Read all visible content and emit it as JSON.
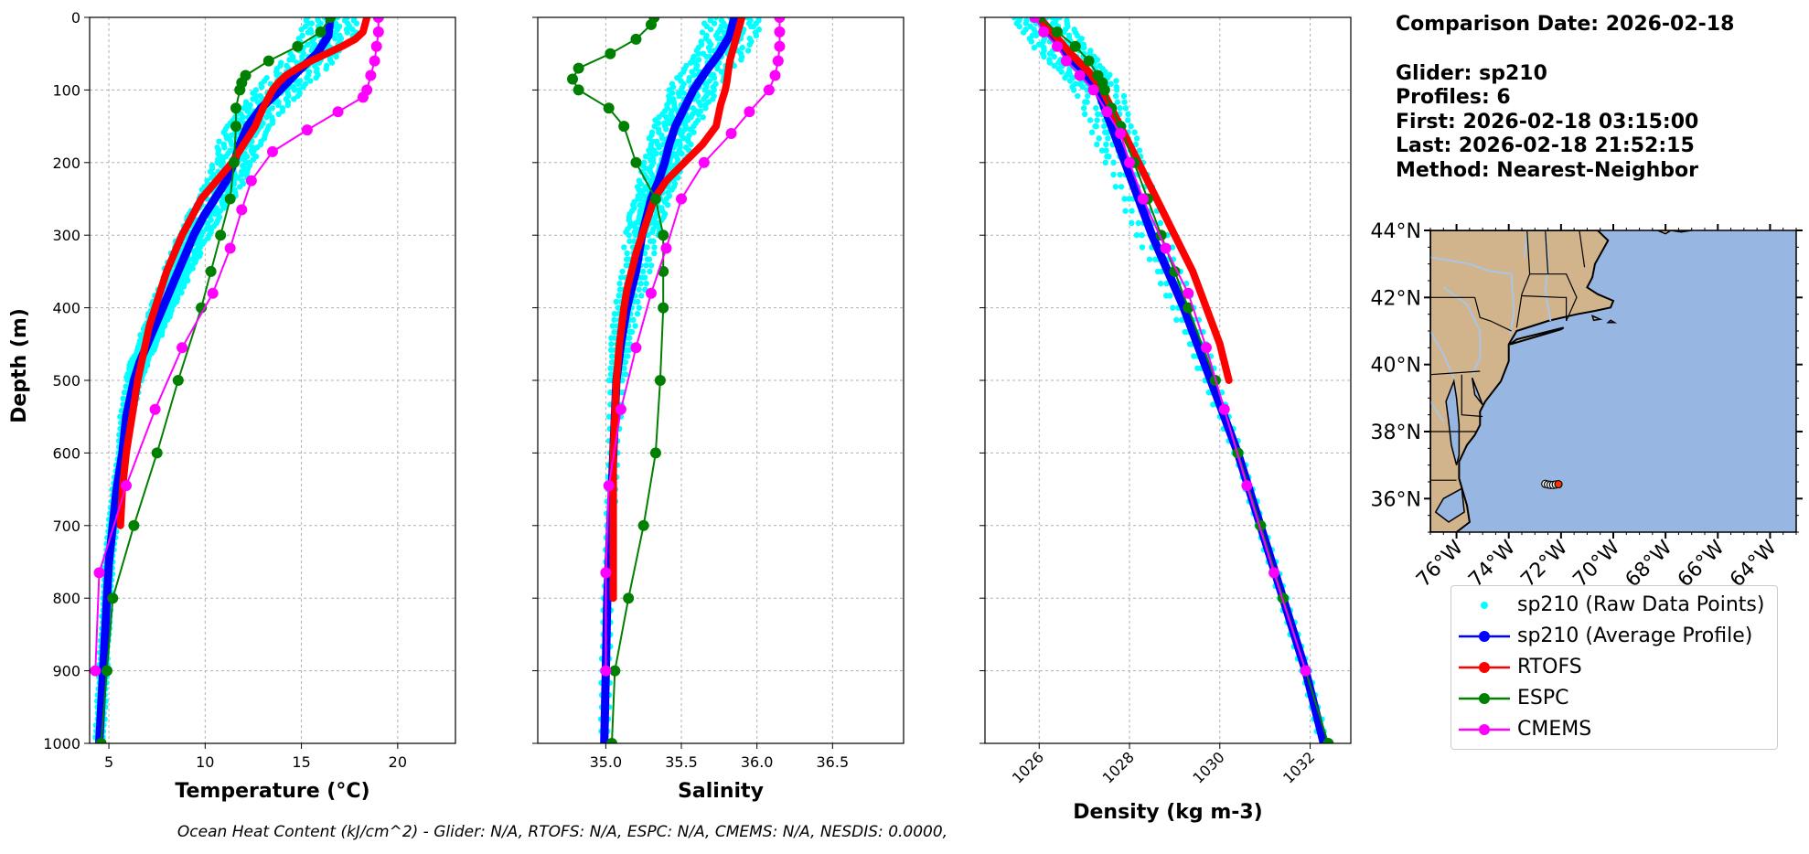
{
  "info": {
    "comparison": "Comparison Date: 2026-02-18",
    "glider": "Glider: sp210",
    "profiles": "Profiles: 6",
    "first": "First: 2026-02-18 03:15:00",
    "last": "Last: 2026-02-18 21:52:15",
    "method": "Method: Nearest-Neighbor"
  },
  "footer": "Ocean Heat Content (kJ/cm^2) - Glider: N/A,  RTOFS: N/A,  ESPC: N/A,  CMEMS: N/A,  NESDIS: 0.0000,",
  "colors": {
    "raw": "#00ffff",
    "glider": "#0000ff",
    "rtofs": "#ff0000",
    "espc": "#008000",
    "cmems": "#ff00ff",
    "land": "#d2b48c",
    "ocean": "#97b6e1",
    "river": "#a9c5e6"
  },
  "legend": [
    {
      "key": "raw",
      "label": "sp210 (Raw Data Points)",
      "style": "dot"
    },
    {
      "key": "glider",
      "label": "sp210 (Average Profile)",
      "style": "line"
    },
    {
      "key": "rtofs",
      "label": "RTOFS",
      "style": "line"
    },
    {
      "key": "espc",
      "label": "ESPC",
      "style": "line"
    },
    {
      "key": "cmems",
      "label": "CMEMS",
      "style": "line"
    }
  ],
  "chart_data": [
    {
      "type": "line",
      "id": "temperature",
      "xlabel": "Temperature (°C)",
      "ylabel": "Depth (m)",
      "xlim": [
        4,
        23
      ],
      "ylim": [
        1000,
        0
      ],
      "xticks": [
        5,
        10,
        15,
        20
      ],
      "yticks": [
        0,
        100,
        200,
        300,
        400,
        500,
        600,
        700,
        800,
        900,
        1000
      ],
      "grid": true,
      "series": [
        {
          "name": "sp210 (Average Profile)",
          "key": "glider",
          "depth": [
            0,
            25,
            50,
            75,
            100,
            125,
            150,
            175,
            200,
            225,
            250,
            275,
            300,
            325,
            350,
            375,
            400,
            425,
            450,
            475,
            500,
            550,
            600,
            650,
            700,
            750,
            800,
            850,
            900,
            950,
            1000
          ],
          "values": [
            16.5,
            16.4,
            15.8,
            14.8,
            13.9,
            12.9,
            12.2,
            11.8,
            11.5,
            11.1,
            10.5,
            9.9,
            9.4,
            9.0,
            8.6,
            8.2,
            7.8,
            7.4,
            7.0,
            6.6,
            6.3,
            5.9,
            5.7,
            5.4,
            5.2,
            5.0,
            4.9,
            4.8,
            4.7,
            4.6,
            4.5
          ]
        },
        {
          "name": "RTOFS",
          "key": "rtofs",
          "depth": [
            0,
            10,
            20,
            30,
            40,
            50,
            60,
            70,
            80,
            90,
            100,
            125,
            150,
            175,
            200,
            225,
            250,
            275,
            300,
            325,
            350,
            375,
            400,
            425,
            450,
            475,
            500,
            550,
            600,
            650,
            700
          ],
          "values": [
            18.4,
            18.3,
            18.2,
            17.8,
            17.1,
            16.3,
            15.5,
            14.8,
            14.2,
            13.8,
            13.5,
            13.0,
            12.6,
            12.0,
            11.4,
            10.6,
            9.8,
            9.3,
            8.8,
            8.4,
            8.0,
            7.7,
            7.4,
            7.1,
            6.9,
            6.7,
            6.5,
            6.2,
            5.9,
            5.7,
            5.6
          ]
        },
        {
          "name": "ESPC",
          "key": "espc",
          "markers": true,
          "depth": [
            0,
            20,
            40,
            60,
            80,
            90,
            100,
            125,
            150,
            200,
            250,
            300,
            350,
            400,
            500,
            600,
            700,
            800,
            900,
            1000
          ],
          "values": [
            16.5,
            16.0,
            14.8,
            13.3,
            12.1,
            11.9,
            11.8,
            11.6,
            11.6,
            11.5,
            11.3,
            10.8,
            10.3,
            9.8,
            8.6,
            7.5,
            6.3,
            5.2,
            4.9,
            4.6
          ]
        },
        {
          "name": "CMEMS",
          "key": "cmems",
          "markers": true,
          "depth": [
            0,
            20,
            40,
            60,
            80,
            100,
            110,
            130,
            155,
            185,
            225,
            265,
            318,
            380,
            455,
            540,
            645,
            765,
            900
          ],
          "values": [
            19.0,
            19.0,
            18.9,
            18.8,
            18.6,
            18.4,
            18.2,
            16.9,
            15.3,
            13.5,
            12.4,
            11.9,
            11.3,
            10.4,
            8.8,
            7.4,
            5.9,
            4.5,
            4.3
          ]
        }
      ]
    },
    {
      "type": "line",
      "id": "salinity",
      "xlabel": "Salinity",
      "xlim": [
        34.55,
        36.97
      ],
      "ylim": [
        1000,
        0
      ],
      "xticks": [
        35.0,
        35.5,
        36.0,
        36.5
      ],
      "yticks": [
        0,
        100,
        200,
        300,
        400,
        500,
        600,
        700,
        800,
        900,
        1000
      ],
      "grid": true,
      "series": [
        {
          "name": "sp210 (Average Profile)",
          "key": "glider",
          "depth": [
            0,
            25,
            50,
            75,
            100,
            125,
            150,
            175,
            200,
            225,
            250,
            275,
            300,
            350,
            400,
            450,
            500,
            600,
            700,
            800,
            900,
            1000
          ],
          "values": [
            35.85,
            35.82,
            35.75,
            35.66,
            35.58,
            35.52,
            35.46,
            35.42,
            35.39,
            35.35,
            35.3,
            35.27,
            35.24,
            35.2,
            35.14,
            35.1,
            35.07,
            35.05,
            35.03,
            35.01,
            35.0,
            34.99
          ]
        },
        {
          "name": "RTOFS",
          "key": "rtofs",
          "depth": [
            0,
            30,
            60,
            90,
            100,
            120,
            150,
            175,
            200,
            225,
            250,
            275,
            300,
            325,
            350,
            375,
            400,
            450,
            500,
            550,
            600,
            700,
            800
          ],
          "values": [
            35.9,
            35.86,
            35.82,
            35.8,
            35.79,
            35.76,
            35.73,
            35.64,
            35.52,
            35.4,
            35.32,
            35.28,
            35.24,
            35.2,
            35.17,
            35.14,
            35.12,
            35.09,
            35.07,
            35.06,
            35.05,
            35.05,
            35.05
          ]
        },
        {
          "name": "ESPC",
          "key": "espc",
          "markers": true,
          "depth": [
            0,
            10,
            30,
            50,
            70,
            85,
            100,
            125,
            150,
            200,
            250,
            300,
            350,
            400,
            500,
            600,
            700,
            800,
            900,
            1000
          ],
          "values": [
            35.32,
            35.3,
            35.2,
            35.03,
            34.82,
            34.78,
            34.82,
            35.02,
            35.12,
            35.2,
            35.33,
            35.38,
            35.38,
            35.38,
            35.36,
            35.33,
            35.25,
            35.15,
            35.06,
            35.04
          ]
        },
        {
          "name": "CMEMS",
          "key": "cmems",
          "markers": true,
          "depth": [
            0,
            20,
            40,
            60,
            80,
            100,
            130,
            160,
            200,
            250,
            318,
            380,
            455,
            540,
            645,
            765,
            900
          ],
          "values": [
            36.15,
            36.15,
            36.15,
            36.14,
            36.12,
            36.08,
            35.95,
            35.83,
            35.65,
            35.5,
            35.4,
            35.3,
            35.2,
            35.1,
            35.02,
            35.0,
            35.0
          ]
        }
      ]
    },
    {
      "type": "line",
      "id": "density",
      "xlabel": "Density (kg m-3)",
      "xlim": [
        1024.8,
        1032.9
      ],
      "ylim": [
        1000,
        0
      ],
      "xticks": [
        1026,
        1028,
        1030,
        1032
      ],
      "yticks": [
        0,
        100,
        200,
        300,
        400,
        500,
        600,
        700,
        800,
        900,
        1000
      ],
      "grid": true,
      "series": [
        {
          "name": "sp210 (Average Profile)",
          "key": "glider",
          "depth": [
            0,
            25,
            50,
            75,
            100,
            150,
            200,
            300,
            400,
            500,
            600,
            700,
            800,
            900,
            1000
          ],
          "values": [
            1026.0,
            1026.3,
            1026.6,
            1027.0,
            1027.3,
            1027.6,
            1027.9,
            1028.5,
            1029.2,
            1029.8,
            1030.4,
            1030.9,
            1031.4,
            1031.9,
            1032.3
          ]
        },
        {
          "name": "RTOFS",
          "key": "rtofs",
          "depth": [
            0,
            25,
            50,
            75,
            100,
            150,
            200,
            250,
            300,
            350,
            400,
            450,
            500
          ],
          "values": [
            1026.0,
            1026.35,
            1026.7,
            1027.1,
            1027.4,
            1027.8,
            1028.2,
            1028.6,
            1029.0,
            1029.4,
            1029.7,
            1030.0,
            1030.2
          ]
        },
        {
          "name": "ESPC",
          "key": "espc",
          "markers": true,
          "depth": [
            0,
            20,
            40,
            60,
            80,
            90,
            100,
            125,
            150,
            200,
            250,
            300,
            350,
            400,
            500,
            600,
            700,
            800,
            900,
            1000
          ],
          "values": [
            1026.0,
            1026.4,
            1026.8,
            1027.1,
            1027.3,
            1027.4,
            1027.45,
            1027.6,
            1027.8,
            1028.1,
            1028.4,
            1028.7,
            1029.0,
            1029.3,
            1029.9,
            1030.4,
            1030.9,
            1031.4,
            1031.9,
            1032.4
          ]
        },
        {
          "name": "CMEMS",
          "key": "cmems",
          "markers": true,
          "depth": [
            0,
            20,
            40,
            60,
            80,
            100,
            130,
            160,
            200,
            250,
            318,
            380,
            455,
            540,
            645,
            765,
            900
          ],
          "values": [
            1025.9,
            1026.1,
            1026.4,
            1026.6,
            1026.9,
            1027.2,
            1027.5,
            1027.8,
            1028.0,
            1028.3,
            1028.8,
            1029.3,
            1029.7,
            1030.1,
            1030.6,
            1031.2,
            1031.9
          ]
        }
      ]
    }
  ],
  "map": {
    "lat_labels": [
      "44°N",
      "42°N",
      "40°N",
      "38°N",
      "36°N"
    ],
    "lat_values": [
      44,
      42,
      40,
      38,
      36
    ],
    "lon_labels": [
      "76°W",
      "74°W",
      "72°W",
      "70°W",
      "68°W",
      "66°W",
      "64°W"
    ],
    "lon_values": [
      -76,
      -74,
      -72,
      -70,
      -68,
      -66,
      -64
    ],
    "extent": {
      "lon": [
        -77,
        -63
      ],
      "lat": [
        35,
        44
      ]
    },
    "glider_track": {
      "lon": [
        -72.6,
        -72.5,
        -72.4,
        -72.3,
        -72.2,
        -72.1
      ],
      "lat": [
        36.44,
        36.42,
        36.41,
        36.41,
        36.42,
        36.43
      ]
    }
  }
}
